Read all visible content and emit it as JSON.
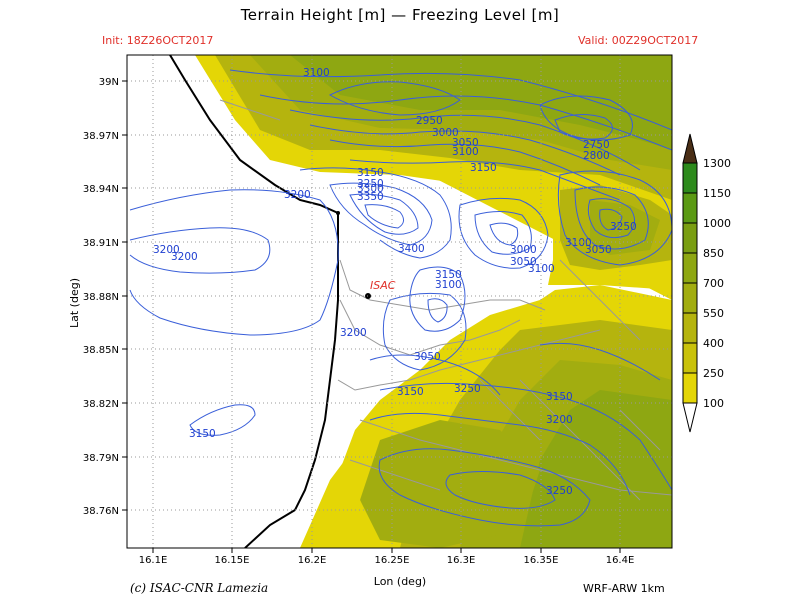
{
  "title": "Terrain Height [m] — Freezing Level [m]",
  "init_label": "Init: 18Z26OCT2017",
  "valid_label": "Valid: 00Z29OCT2017",
  "x_axis_label": "Lon (deg)",
  "y_axis_label": "Lat (deg)",
  "credit": "(c) ISAC-CNR Lamezia",
  "model_label": "WRF-ARW 1km",
  "station_label": "ISAC",
  "x_ticks": [
    "16.1E",
    "16.15E",
    "16.2E",
    "16.25E",
    "16.3E",
    "16.35E",
    "16.4E"
  ],
  "y_ticks": [
    "39N",
    "38.97N",
    "38.94N",
    "38.91N",
    "38.88N",
    "38.85N",
    "38.82N",
    "38.79N",
    "38.76N"
  ],
  "colorbar": {
    "labels": [
      "1300",
      "1150",
      "1000",
      "850",
      "700",
      "550",
      "400",
      "250",
      "100"
    ],
    "colors": [
      "#2d8a1c",
      "#5b9a14",
      "#7a9e12",
      "#8ea712",
      "#a2ad10",
      "#b5b40e",
      "#c9c20a",
      "#e4d606",
      "#f2e200"
    ],
    "top_color": "#4a2e16",
    "bottom_color": "#ffffff"
  },
  "contour_color": "#3a5fd9",
  "contour_labels": [
    "3100",
    "2950",
    "3000",
    "3050",
    "3100",
    "3150",
    "2750",
    "2800",
    "3150",
    "3250",
    "3300",
    "3350",
    "3200",
    "3400",
    "3200",
    "3200",
    "3000",
    "3050",
    "3100",
    "3150",
    "3100",
    "3100",
    "3250",
    "3050",
    "3200",
    "3050",
    "3150",
    "3250",
    "3150",
    "3200",
    "3150",
    "3250"
  ]
}
